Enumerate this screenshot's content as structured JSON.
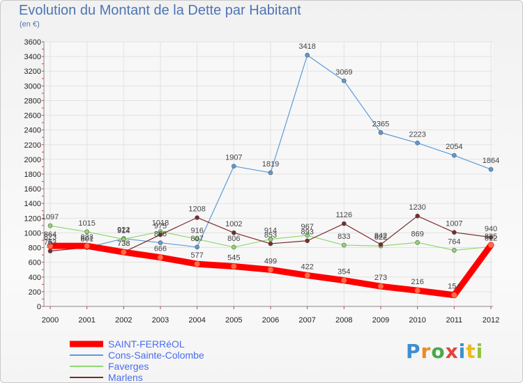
{
  "title": "Evolution du Montant de la Dette par Habitant",
  "unit_label": "(en €)",
  "logo_text": "Proxiti",
  "chart_data": {
    "type": "line",
    "title": "Evolution du Montant de la Dette par Habitant",
    "ylabel": "(en €)",
    "ylim": [
      0,
      3600
    ],
    "yticks": [
      0,
      200,
      400,
      600,
      800,
      1000,
      1200,
      1400,
      1600,
      1800,
      2000,
      2200,
      2400,
      2600,
      2800,
      3000,
      3200,
      3400,
      3600
    ],
    "x": [
      "2000",
      "2001",
      "2002",
      "2003",
      "2004",
      "2005",
      "2006",
      "2007",
      "2008",
      "2009",
      "2010",
      "2011",
      "2012"
    ],
    "grid": true,
    "legend_position": "bottom-left",
    "series": [
      {
        "name": "SAINT-FERRéOL",
        "color": "#ff0000",
        "values": [
          823,
          823,
          738,
          666,
          577,
          545,
          499,
          422,
          354,
          273,
          216,
          154,
          835
        ],
        "labels": [
          "823",
          "823",
          "738",
          "666",
          "577",
          "545",
          "499",
          "422",
          "354",
          "273",
          "216",
          "154",
          "835"
        ]
      },
      {
        "name": "Cons-Sainte-Colombe",
        "color": "#5b9bd5",
        "values": [
          864,
          801,
          922,
          866,
          807,
          1907,
          1819,
          3418,
          3069,
          2365,
          2223,
          2054,
          1864
        ],
        "labels": [
          "864",
          "801",
          "922",
          "866",
          "807",
          "1907",
          "1819",
          "3418",
          "3069",
          "2365",
          "2223",
          "2054",
          "1864"
        ]
      },
      {
        "name": "Faverges",
        "color": "#90d870",
        "values": [
          1097,
          1015,
          914,
          1018,
          916,
          806,
          914,
          967,
          833,
          822,
          869,
          764,
          812
        ],
        "labels": [
          "1097",
          "1015",
          "914",
          "1018",
          "916",
          "806",
          "914",
          "967",
          "833",
          "822",
          "869",
          "764",
          "812"
        ]
      },
      {
        "name": "Marlens",
        "color": "#7a2a2a",
        "values": [
          753,
          801,
          738,
          975,
          1208,
          1002,
          853,
          893,
          1126,
          842,
          1230,
          1007,
          940
        ],
        "labels": [
          "753",
          "801",
          "738",
          "975",
          "1208",
          "1002",
          "853",
          "893",
          "1126",
          "842",
          "1230",
          "1007",
          "940"
        ]
      }
    ]
  }
}
